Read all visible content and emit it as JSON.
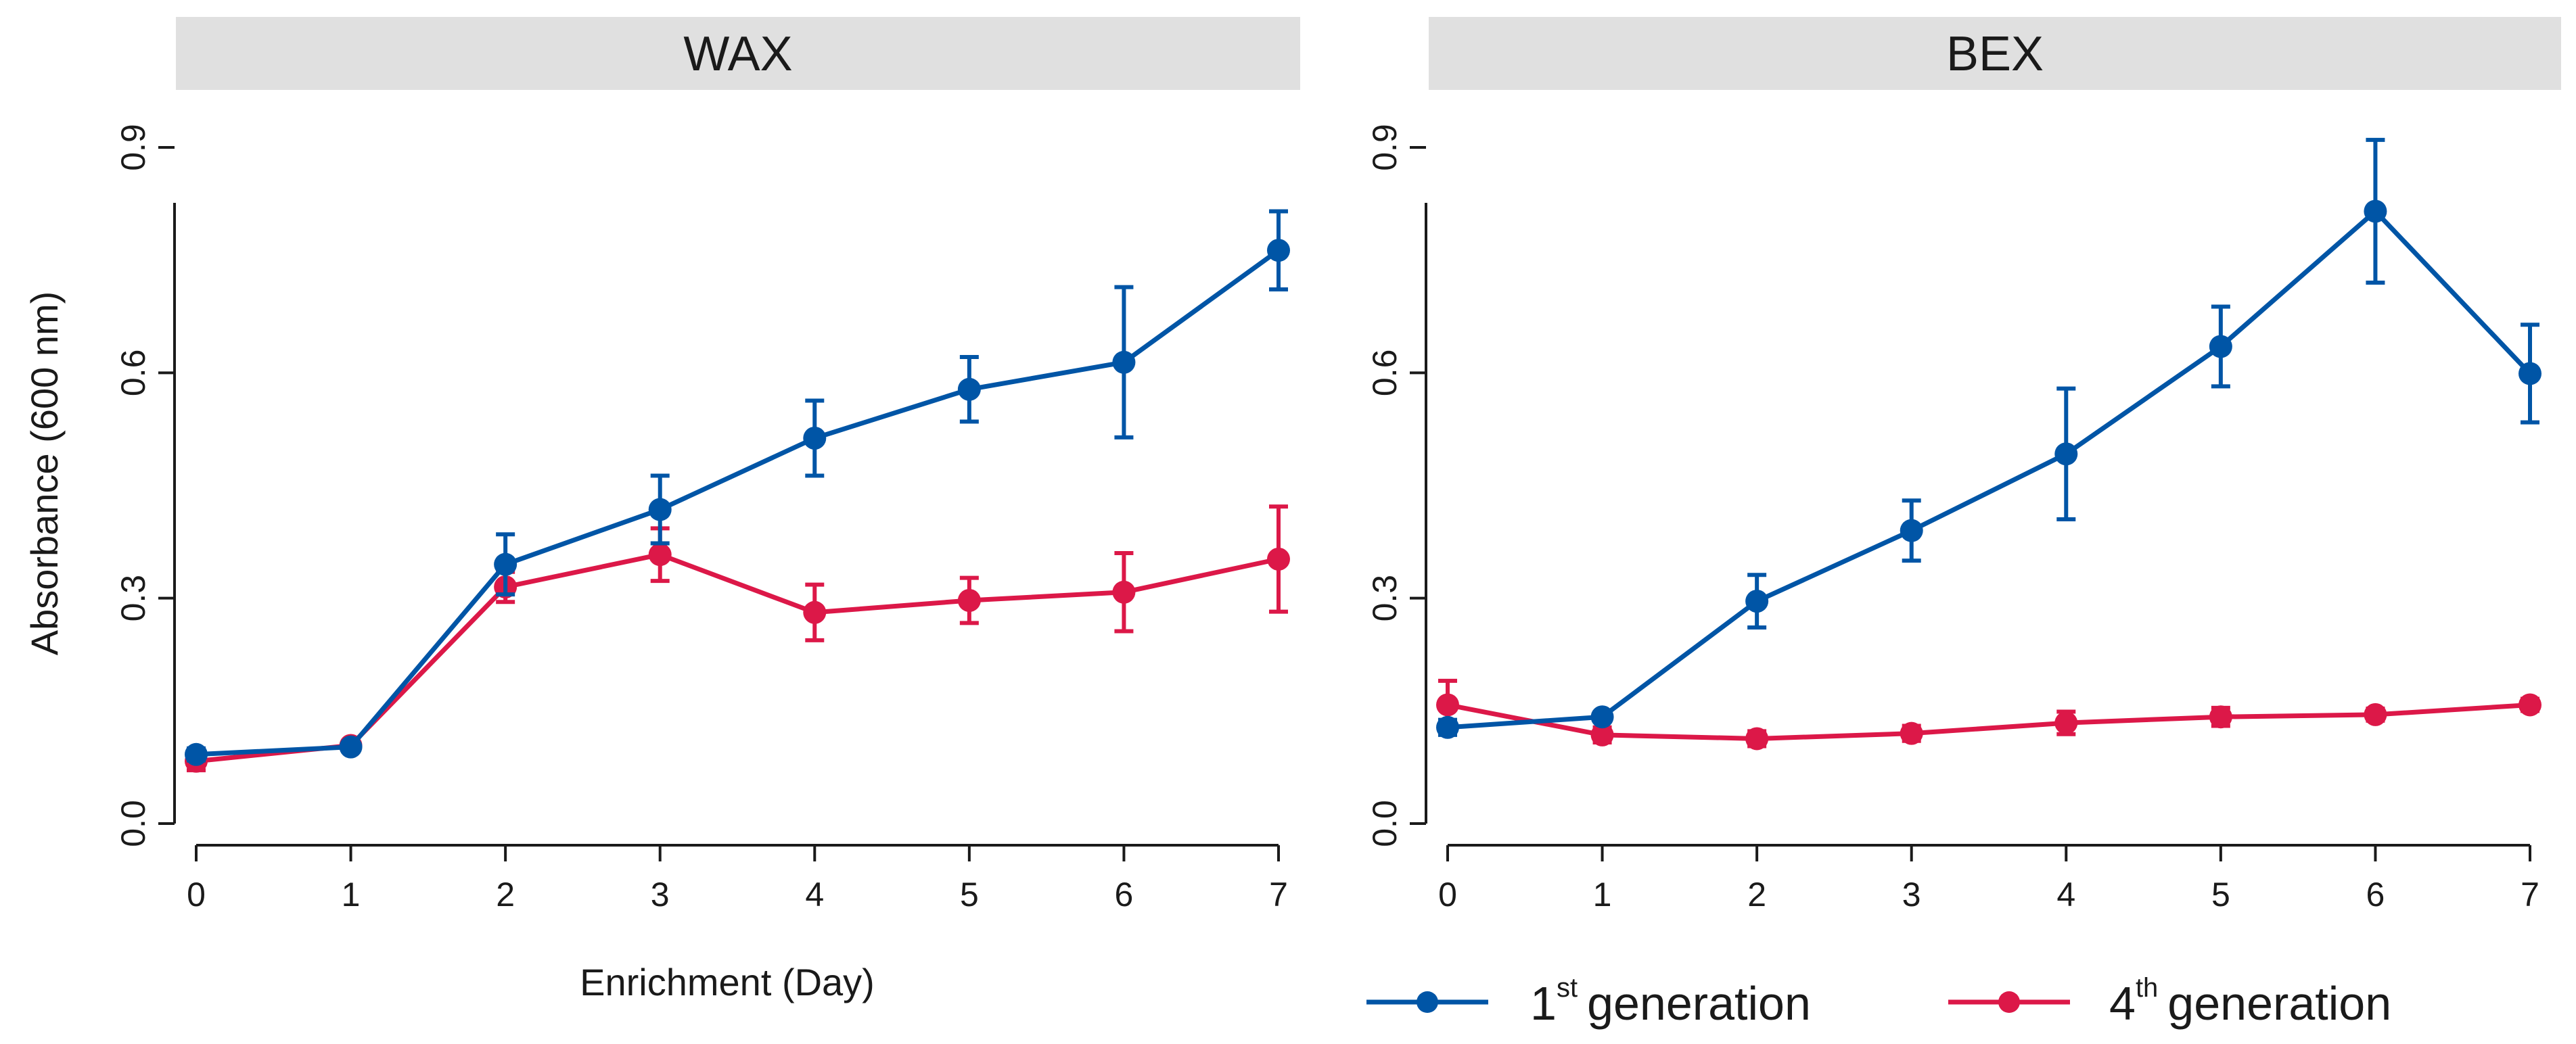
{
  "shared": {
    "ylabel": "Absorbance (600 nm)",
    "xlabel": "Enrichment (Day)",
    "legend": {
      "gen1": {
        "number": "1",
        "sup": "st",
        "text": "generation",
        "color": "#0055a6"
      },
      "gen4": {
        "number": "4",
        "sup": "th",
        "text": "generation",
        "color": "#dc1848"
      }
    }
  },
  "chart_data": [
    {
      "type": "line",
      "title": "WAX",
      "xlabel": "Enrichment (Day)",
      "ylabel": "Absorbance (600 nm)",
      "x": [
        0,
        1,
        2,
        3,
        4,
        5,
        6,
        7
      ],
      "xticks": [
        "0",
        "1",
        "2",
        "3",
        "4",
        "5",
        "6",
        "7"
      ],
      "ylim": [
        0,
        0.9
      ],
      "yticks": [
        "0.0",
        "0.3",
        "0.6",
        "0.9"
      ],
      "series": [
        {
          "name": "1st generation",
          "color": "#0055a6",
          "values": [
            0.092,
            0.102,
            0.345,
            0.418,
            0.513,
            0.578,
            0.614,
            0.763
          ],
          "errors": [
            0.008,
            0.006,
            0.04,
            0.045,
            0.05,
            0.043,
            0.1,
            0.052
          ]
        },
        {
          "name": "4th generation",
          "color": "#dc1848",
          "values": [
            0.083,
            0.104,
            0.315,
            0.358,
            0.281,
            0.297,
            0.308,
            0.352
          ],
          "errors": [
            0.012,
            0.006,
            0.02,
            0.035,
            0.037,
            0.03,
            0.052,
            0.07
          ]
        }
      ]
    },
    {
      "type": "line",
      "title": "BEX",
      "xlabel": "",
      "ylabel": "",
      "x": [
        0,
        1,
        2,
        3,
        4,
        5,
        6,
        7
      ],
      "xticks": [
        "0",
        "1",
        "2",
        "3",
        "4",
        "5",
        "6",
        "7"
      ],
      "ylim": [
        0,
        0.9
      ],
      "yticks": [
        "0.0",
        "0.3",
        "0.6",
        "0.9"
      ],
      "series": [
        {
          "name": "1st generation",
          "color": "#0055a6",
          "values": [
            0.128,
            0.142,
            0.296,
            0.39,
            0.492,
            0.635,
            0.815,
            0.599
          ],
          "errors": [
            0.01,
            0.006,
            0.035,
            0.04,
            0.087,
            0.053,
            0.095,
            0.065
          ]
        },
        {
          "name": "4th generation",
          "color": "#dc1848",
          "values": [
            0.158,
            0.118,
            0.113,
            0.12,
            0.134,
            0.142,
            0.145,
            0.158
          ],
          "errors": [
            0.032,
            0.01,
            0.01,
            0.01,
            0.015,
            0.012,
            0.008,
            0.008
          ]
        }
      ]
    }
  ]
}
